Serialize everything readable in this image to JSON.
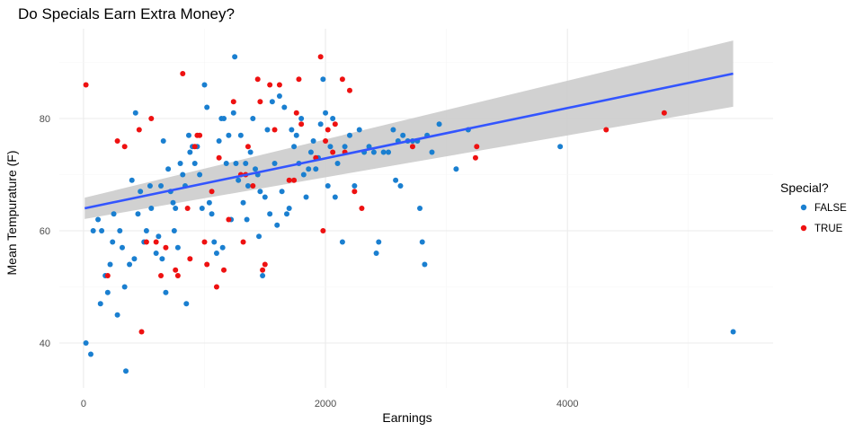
{
  "chart_data": {
    "type": "scatter",
    "title": "Do Specials Earn Extra Money?",
    "xlabel": "Earnings",
    "ylabel": "Mean Tempurature (F)",
    "xlim": [
      -200,
      5700
    ],
    "ylim": [
      32,
      96
    ],
    "x_ticks": [
      0,
      2000,
      4000
    ],
    "y_ticks": [
      40,
      60,
      80
    ],
    "x_tick_labels": [
      "0",
      "2000",
      "4000"
    ],
    "y_tick_labels": [
      "40",
      "60",
      "80"
    ],
    "grid": true,
    "legend": {
      "title": "Special?",
      "position": "right",
      "entries": [
        {
          "label": "FALSE",
          "color": "#1a7fd0"
        },
        {
          "label": "TRUE",
          "color": "#ee1111"
        }
      ]
    },
    "trend": {
      "method": "linear",
      "line_color": "#3355ff",
      "band_color": "#cccccc",
      "x": [
        10,
        5370
      ],
      "y": [
        64,
        88
      ],
      "band_lower": [
        62.1,
        82.1
      ],
      "band_upper": [
        65.9,
        93.9
      ]
    },
    "series": [
      {
        "name": "FALSE",
        "color": "#1a7fd0",
        "points": [
          [
            20,
            40
          ],
          [
            60,
            38
          ],
          [
            80,
            60
          ],
          [
            120,
            62
          ],
          [
            140,
            47
          ],
          [
            150,
            60
          ],
          [
            180,
            52
          ],
          [
            200,
            49
          ],
          [
            220,
            54
          ],
          [
            240,
            58
          ],
          [
            250,
            63
          ],
          [
            280,
            45
          ],
          [
            300,
            60
          ],
          [
            320,
            57
          ],
          [
            340,
            50
          ],
          [
            350,
            35
          ],
          [
            380,
            54
          ],
          [
            400,
            69
          ],
          [
            420,
            55
          ],
          [
            430,
            81
          ],
          [
            450,
            63
          ],
          [
            470,
            67
          ],
          [
            500,
            58
          ],
          [
            520,
            60
          ],
          [
            550,
            68
          ],
          [
            560,
            64
          ],
          [
            600,
            56
          ],
          [
            620,
            59
          ],
          [
            640,
            68
          ],
          [
            650,
            55
          ],
          [
            660,
            76
          ],
          [
            680,
            49
          ],
          [
            700,
            71
          ],
          [
            720,
            67
          ],
          [
            740,
            65
          ],
          [
            750,
            60
          ],
          [
            760,
            64
          ],
          [
            780,
            57
          ],
          [
            800,
            72
          ],
          [
            820,
            70
          ],
          [
            840,
            68
          ],
          [
            850,
            47
          ],
          [
            870,
            77
          ],
          [
            880,
            74
          ],
          [
            900,
            75
          ],
          [
            920,
            72
          ],
          [
            940,
            75
          ],
          [
            960,
            70
          ],
          [
            980,
            64
          ],
          [
            1000,
            86
          ],
          [
            1020,
            82
          ],
          [
            1040,
            65
          ],
          [
            1060,
            63
          ],
          [
            1080,
            58
          ],
          [
            1100,
            56
          ],
          [
            1120,
            76
          ],
          [
            1140,
            80
          ],
          [
            1150,
            57
          ],
          [
            1160,
            80
          ],
          [
            1180,
            72
          ],
          [
            1200,
            77
          ],
          [
            1220,
            62
          ],
          [
            1240,
            81
          ],
          [
            1250,
            91
          ],
          [
            1260,
            72
          ],
          [
            1280,
            69
          ],
          [
            1300,
            77
          ],
          [
            1320,
            65
          ],
          [
            1340,
            72
          ],
          [
            1350,
            62
          ],
          [
            1360,
            68
          ],
          [
            1380,
            74
          ],
          [
            1400,
            80
          ],
          [
            1420,
            71
          ],
          [
            1440,
            70
          ],
          [
            1450,
            59
          ],
          [
            1460,
            67
          ],
          [
            1480,
            52
          ],
          [
            1500,
            66
          ],
          [
            1520,
            78
          ],
          [
            1540,
            63
          ],
          [
            1560,
            83
          ],
          [
            1580,
            72
          ],
          [
            1600,
            61
          ],
          [
            1620,
            84
          ],
          [
            1640,
            67
          ],
          [
            1660,
            82
          ],
          [
            1680,
            63
          ],
          [
            1700,
            64
          ],
          [
            1720,
            78
          ],
          [
            1740,
            75
          ],
          [
            1760,
            77
          ],
          [
            1780,
            72
          ],
          [
            1800,
            80
          ],
          [
            1820,
            70
          ],
          [
            1840,
            66
          ],
          [
            1860,
            71
          ],
          [
            1880,
            74
          ],
          [
            1900,
            76
          ],
          [
            1920,
            71
          ],
          [
            1940,
            73
          ],
          [
            1960,
            79
          ],
          [
            1980,
            87
          ],
          [
            2000,
            81
          ],
          [
            2020,
            68
          ],
          [
            2040,
            75
          ],
          [
            2060,
            80
          ],
          [
            2080,
            66
          ],
          [
            2100,
            72
          ],
          [
            2140,
            58
          ],
          [
            2160,
            75
          ],
          [
            2200,
            77
          ],
          [
            2240,
            68
          ],
          [
            2280,
            78
          ],
          [
            2320,
            74
          ],
          [
            2360,
            75
          ],
          [
            2400,
            74
          ],
          [
            2420,
            56
          ],
          [
            2440,
            58
          ],
          [
            2480,
            74
          ],
          [
            2520,
            74
          ],
          [
            2560,
            78
          ],
          [
            2580,
            69
          ],
          [
            2600,
            76
          ],
          [
            2620,
            68
          ],
          [
            2640,
            77
          ],
          [
            2680,
            76
          ],
          [
            2720,
            76
          ],
          [
            2760,
            76
          ],
          [
            2780,
            64
          ],
          [
            2800,
            58
          ],
          [
            2820,
            54
          ],
          [
            2840,
            77
          ],
          [
            2880,
            74
          ],
          [
            2940,
            79
          ],
          [
            3080,
            71
          ],
          [
            3180,
            78
          ],
          [
            3940,
            75
          ],
          [
            5370,
            42
          ]
        ]
      },
      {
        "name": "TRUE",
        "color": "#ee1111",
        "points": [
          [
            20,
            86
          ],
          [
            200,
            52
          ],
          [
            280,
            76
          ],
          [
            340,
            75
          ],
          [
            460,
            78
          ],
          [
            480,
            42
          ],
          [
            520,
            58
          ],
          [
            560,
            80
          ],
          [
            600,
            58
          ],
          [
            640,
            52
          ],
          [
            680,
            57
          ],
          [
            760,
            53
          ],
          [
            780,
            52
          ],
          [
            820,
            88
          ],
          [
            860,
            64
          ],
          [
            880,
            55
          ],
          [
            920,
            75
          ],
          [
            940,
            77
          ],
          [
            960,
            77
          ],
          [
            1000,
            58
          ],
          [
            1020,
            54
          ],
          [
            1060,
            67
          ],
          [
            1100,
            50
          ],
          [
            1120,
            73
          ],
          [
            1160,
            53
          ],
          [
            1200,
            62
          ],
          [
            1240,
            83
          ],
          [
            1300,
            70
          ],
          [
            1320,
            58
          ],
          [
            1340,
            70
          ],
          [
            1360,
            75
          ],
          [
            1400,
            68
          ],
          [
            1440,
            87
          ],
          [
            1460,
            83
          ],
          [
            1480,
            53
          ],
          [
            1500,
            54
          ],
          [
            1540,
            86
          ],
          [
            1580,
            78
          ],
          [
            1620,
            86
          ],
          [
            1700,
            69
          ],
          [
            1740,
            69
          ],
          [
            1760,
            81
          ],
          [
            1780,
            87
          ],
          [
            1800,
            79
          ],
          [
            1920,
            73
          ],
          [
            1960,
            91
          ],
          [
            1980,
            60
          ],
          [
            2000,
            76
          ],
          [
            2020,
            78
          ],
          [
            2060,
            74
          ],
          [
            2080,
            79
          ],
          [
            2140,
            87
          ],
          [
            2160,
            74
          ],
          [
            2200,
            85
          ],
          [
            2240,
            67
          ],
          [
            2300,
            64
          ],
          [
            2720,
            75
          ],
          [
            3240,
            73
          ],
          [
            3250,
            75
          ],
          [
            4320,
            78
          ],
          [
            4800,
            81
          ]
        ]
      }
    ]
  }
}
